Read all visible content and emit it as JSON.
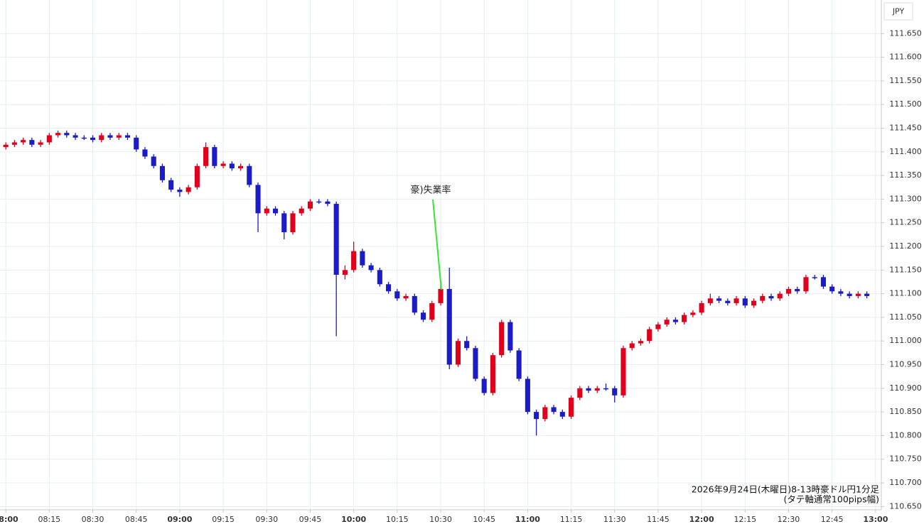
{
  "chart_data": {
    "type": "candlestick",
    "currency": "JPY",
    "annotation": "豪)失業率",
    "caption": [
      "2026年9月24日(木曜日)8-13時豪ドル円1分足",
      "(タテ軸通常100pips幅)"
    ],
    "up_color": "#e0001b",
    "down_color": "#1b1bc8",
    "grid": true,
    "x": [
      "08:00",
      "08:03",
      "08:06",
      "08:09",
      "08:12",
      "08:15",
      "08:18",
      "08:21",
      "08:24",
      "08:27",
      "08:30",
      "08:33",
      "08:36",
      "08:39",
      "08:42",
      "08:45",
      "08:48",
      "08:51",
      "08:54",
      "08:57",
      "09:00",
      "09:03",
      "09:06",
      "09:09",
      "09:12",
      "09:15",
      "09:18",
      "09:21",
      "09:24",
      "09:27",
      "09:30",
      "09:33",
      "09:36",
      "09:39",
      "09:42",
      "09:45",
      "09:48",
      "09:51",
      "09:54",
      "09:57",
      "10:00",
      "10:03",
      "10:06",
      "10:09",
      "10:12",
      "10:15",
      "10:18",
      "10:21",
      "10:24",
      "10:27",
      "10:30",
      "10:33",
      "10:36",
      "10:39",
      "10:42",
      "10:45",
      "10:48",
      "10:51",
      "10:54",
      "10:57",
      "11:00",
      "11:03",
      "11:06",
      "11:09",
      "11:12",
      "11:15",
      "11:18",
      "11:21",
      "11:24",
      "11:27",
      "11:30",
      "11:33",
      "11:36",
      "11:39",
      "11:42",
      "11:45",
      "11:48",
      "11:51",
      "11:54",
      "11:57",
      "12:00",
      "12:03",
      "12:06",
      "12:09",
      "12:12",
      "12:15",
      "12:18",
      "12:21",
      "12:24",
      "12:27",
      "12:30",
      "12:33",
      "12:36",
      "12:39",
      "12:42",
      "12:45",
      "12:48",
      "12:51",
      "12:54",
      "12:57"
    ],
    "open": [
      111.41,
      111.415,
      111.42,
      111.425,
      111.415,
      111.42,
      111.435,
      111.44,
      111.435,
      111.43,
      111.43,
      111.425,
      111.435,
      111.43,
      111.435,
      111.43,
      111.405,
      111.39,
      111.37,
      111.34,
      111.32,
      111.315,
      111.325,
      111.37,
      111.41,
      111.37,
      111.375,
      111.365,
      111.37,
      111.33,
      111.27,
      111.28,
      111.27,
      111.23,
      111.27,
      111.28,
      111.295,
      111.295,
      111.29,
      111.14,
      111.15,
      111.19,
      111.16,
      111.15,
      111.12,
      111.105,
      111.09,
      111.095,
      111.06,
      111.045,
      111.08,
      111.11,
      110.95,
      111.0,
      110.985,
      110.92,
      110.89,
      110.97,
      111.04,
      110.98,
      110.92,
      110.85,
      110.835,
      110.86,
      110.85,
      110.84,
      110.88,
      110.9,
      110.895,
      110.9,
      110.9,
      110.885,
      110.985,
      110.995,
      111.0,
      111.025,
      111.035,
      111.045,
      111.04,
      111.055,
      111.06,
      111.08,
      111.09,
      111.085,
      111.08,
      111.09,
      111.075,
      111.085,
      111.095,
      111.09,
      111.1,
      111.11,
      111.105,
      111.135,
      111.135,
      111.115,
      111.105,
      111.1,
      111.095,
      111.1
    ],
    "high": [
      111.42,
      111.425,
      111.43,
      111.43,
      111.425,
      111.44,
      111.445,
      111.445,
      111.44,
      111.435,
      111.435,
      111.44,
      111.44,
      111.44,
      111.44,
      111.435,
      111.41,
      111.395,
      111.375,
      111.345,
      111.325,
      111.33,
      111.375,
      111.42,
      111.415,
      111.38,
      111.38,
      111.375,
      111.375,
      111.335,
      111.285,
      111.285,
      111.275,
      111.275,
      111.285,
      111.3,
      111.3,
      111.3,
      111.295,
      111.16,
      111.21,
      111.195,
      111.165,
      111.155,
      111.125,
      111.11,
      111.1,
      111.1,
      111.065,
      111.085,
      111.125,
      111.155,
      111.005,
      111.01,
      110.99,
      110.925,
      110.975,
      111.045,
      111.045,
      110.985,
      110.925,
      110.855,
      110.865,
      110.865,
      110.855,
      110.885,
      110.905,
      110.905,
      110.905,
      110.91,
      110.905,
      110.99,
      111.0,
      111.005,
      111.03,
      111.04,
      111.05,
      111.05,
      111.06,
      111.065,
      111.085,
      111.1,
      111.095,
      111.09,
      111.095,
      111.095,
      111.09,
      111.1,
      111.1,
      111.105,
      111.115,
      111.115,
      111.14,
      111.14,
      111.14,
      111.12,
      111.11,
      111.105,
      111.105,
      111.105
    ],
    "low": [
      111.405,
      111.41,
      111.415,
      111.41,
      111.41,
      111.415,
      111.43,
      111.43,
      111.425,
      111.425,
      111.42,
      111.42,
      111.425,
      111.425,
      111.425,
      111.4,
      111.385,
      111.365,
      111.335,
      111.315,
      111.305,
      111.31,
      111.32,
      111.365,
      111.365,
      111.365,
      111.36,
      111.36,
      111.325,
      111.23,
      111.265,
      111.265,
      111.215,
      111.225,
      111.265,
      111.275,
      111.29,
      111.285,
      111.01,
      111.13,
      111.145,
      111.155,
      111.145,
      111.115,
      111.1,
      111.085,
      111.085,
      111.055,
      111.04,
      111.04,
      111.075,
      110.94,
      110.945,
      110.98,
      110.915,
      110.885,
      110.885,
      110.965,
      110.975,
      110.915,
      110.845,
      110.8,
      110.83,
      110.845,
      110.835,
      110.835,
      110.875,
      110.89,
      110.89,
      110.895,
      110.87,
      110.88,
      110.98,
      110.99,
      110.995,
      111.02,
      111.03,
      111.035,
      111.035,
      111.05,
      111.055,
      111.075,
      111.08,
      111.075,
      111.075,
      111.07,
      111.07,
      111.08,
      111.085,
      111.085,
      111.095,
      111.1,
      111.1,
      111.13,
      111.11,
      111.1,
      111.095,
      111.09,
      111.09,
      111.09
    ],
    "close": [
      111.415,
      111.42,
      111.425,
      111.415,
      111.42,
      111.435,
      111.44,
      111.435,
      111.43,
      111.43,
      111.425,
      111.435,
      111.43,
      111.435,
      111.43,
      111.405,
      111.39,
      111.37,
      111.34,
      111.32,
      111.315,
      111.325,
      111.37,
      111.41,
      111.37,
      111.375,
      111.365,
      111.37,
      111.33,
      111.27,
      111.28,
      111.27,
      111.23,
      111.27,
      111.28,
      111.295,
      111.295,
      111.29,
      111.14,
      111.15,
      111.19,
      111.16,
      111.15,
      111.12,
      111.105,
      111.09,
      111.095,
      111.06,
      111.045,
      111.08,
      111.11,
      110.95,
      111.0,
      110.985,
      110.92,
      110.89,
      110.97,
      111.04,
      110.98,
      110.92,
      110.85,
      110.835,
      110.86,
      110.85,
      110.84,
      110.88,
      110.9,
      110.895,
      110.9,
      110.9,
      110.885,
      110.985,
      110.995,
      111.0,
      111.025,
      111.035,
      111.045,
      111.04,
      111.055,
      111.06,
      111.08,
      111.09,
      111.085,
      111.08,
      111.09,
      111.075,
      111.085,
      111.095,
      111.09,
      111.1,
      111.11,
      111.105,
      111.135,
      111.135,
      111.115,
      111.105,
      111.1,
      111.095,
      111.1,
      111.095
    ],
    "xlim": [
      "07:58",
      "13:02"
    ],
    "xticks": [
      "08:00",
      "08:15",
      "08:30",
      "08:45",
      "09:00",
      "09:15",
      "09:30",
      "09:45",
      "10:00",
      "10:15",
      "10:30",
      "10:45",
      "11:00",
      "11:15",
      "11:30",
      "11:45",
      "12:00",
      "12:15",
      "12:30",
      "12:45",
      "13:00"
    ],
    "ylim": [
      110.643,
      111.721
    ],
    "yticks": [
      {
        "value": 110.65,
        "label": "110.650"
      },
      {
        "value": 110.7,
        "label": "110.700"
      },
      {
        "value": 110.75,
        "label": "110.750"
      },
      {
        "value": 110.8,
        "label": "110.800"
      },
      {
        "value": 110.85,
        "label": "110.850"
      },
      {
        "value": 110.9,
        "label": "110.900"
      },
      {
        "value": 110.95,
        "label": "110.950"
      },
      {
        "value": 111,
        "label": "111.000"
      },
      {
        "value": 111.05,
        "label": "111.050"
      },
      {
        "value": 111.1,
        "label": "111.100"
      },
      {
        "value": 111.15,
        "label": "111.150"
      },
      {
        "value": 111.2,
        "label": "111.200"
      },
      {
        "value": 111.25,
        "label": "111.250"
      },
      {
        "value": 111.3,
        "label": "111.300"
      },
      {
        "value": 111.35,
        "label": "111.350"
      },
      {
        "value": 111.4,
        "label": "111.400"
      },
      {
        "value": 111.45,
        "label": "111.450"
      },
      {
        "value": 111.5,
        "label": "111.500"
      },
      {
        "value": 111.55,
        "label": "111.550"
      },
      {
        "value": 111.6,
        "label": "111.600"
      },
      {
        "value": 111.65,
        "label": "111.650"
      }
    ]
  }
}
